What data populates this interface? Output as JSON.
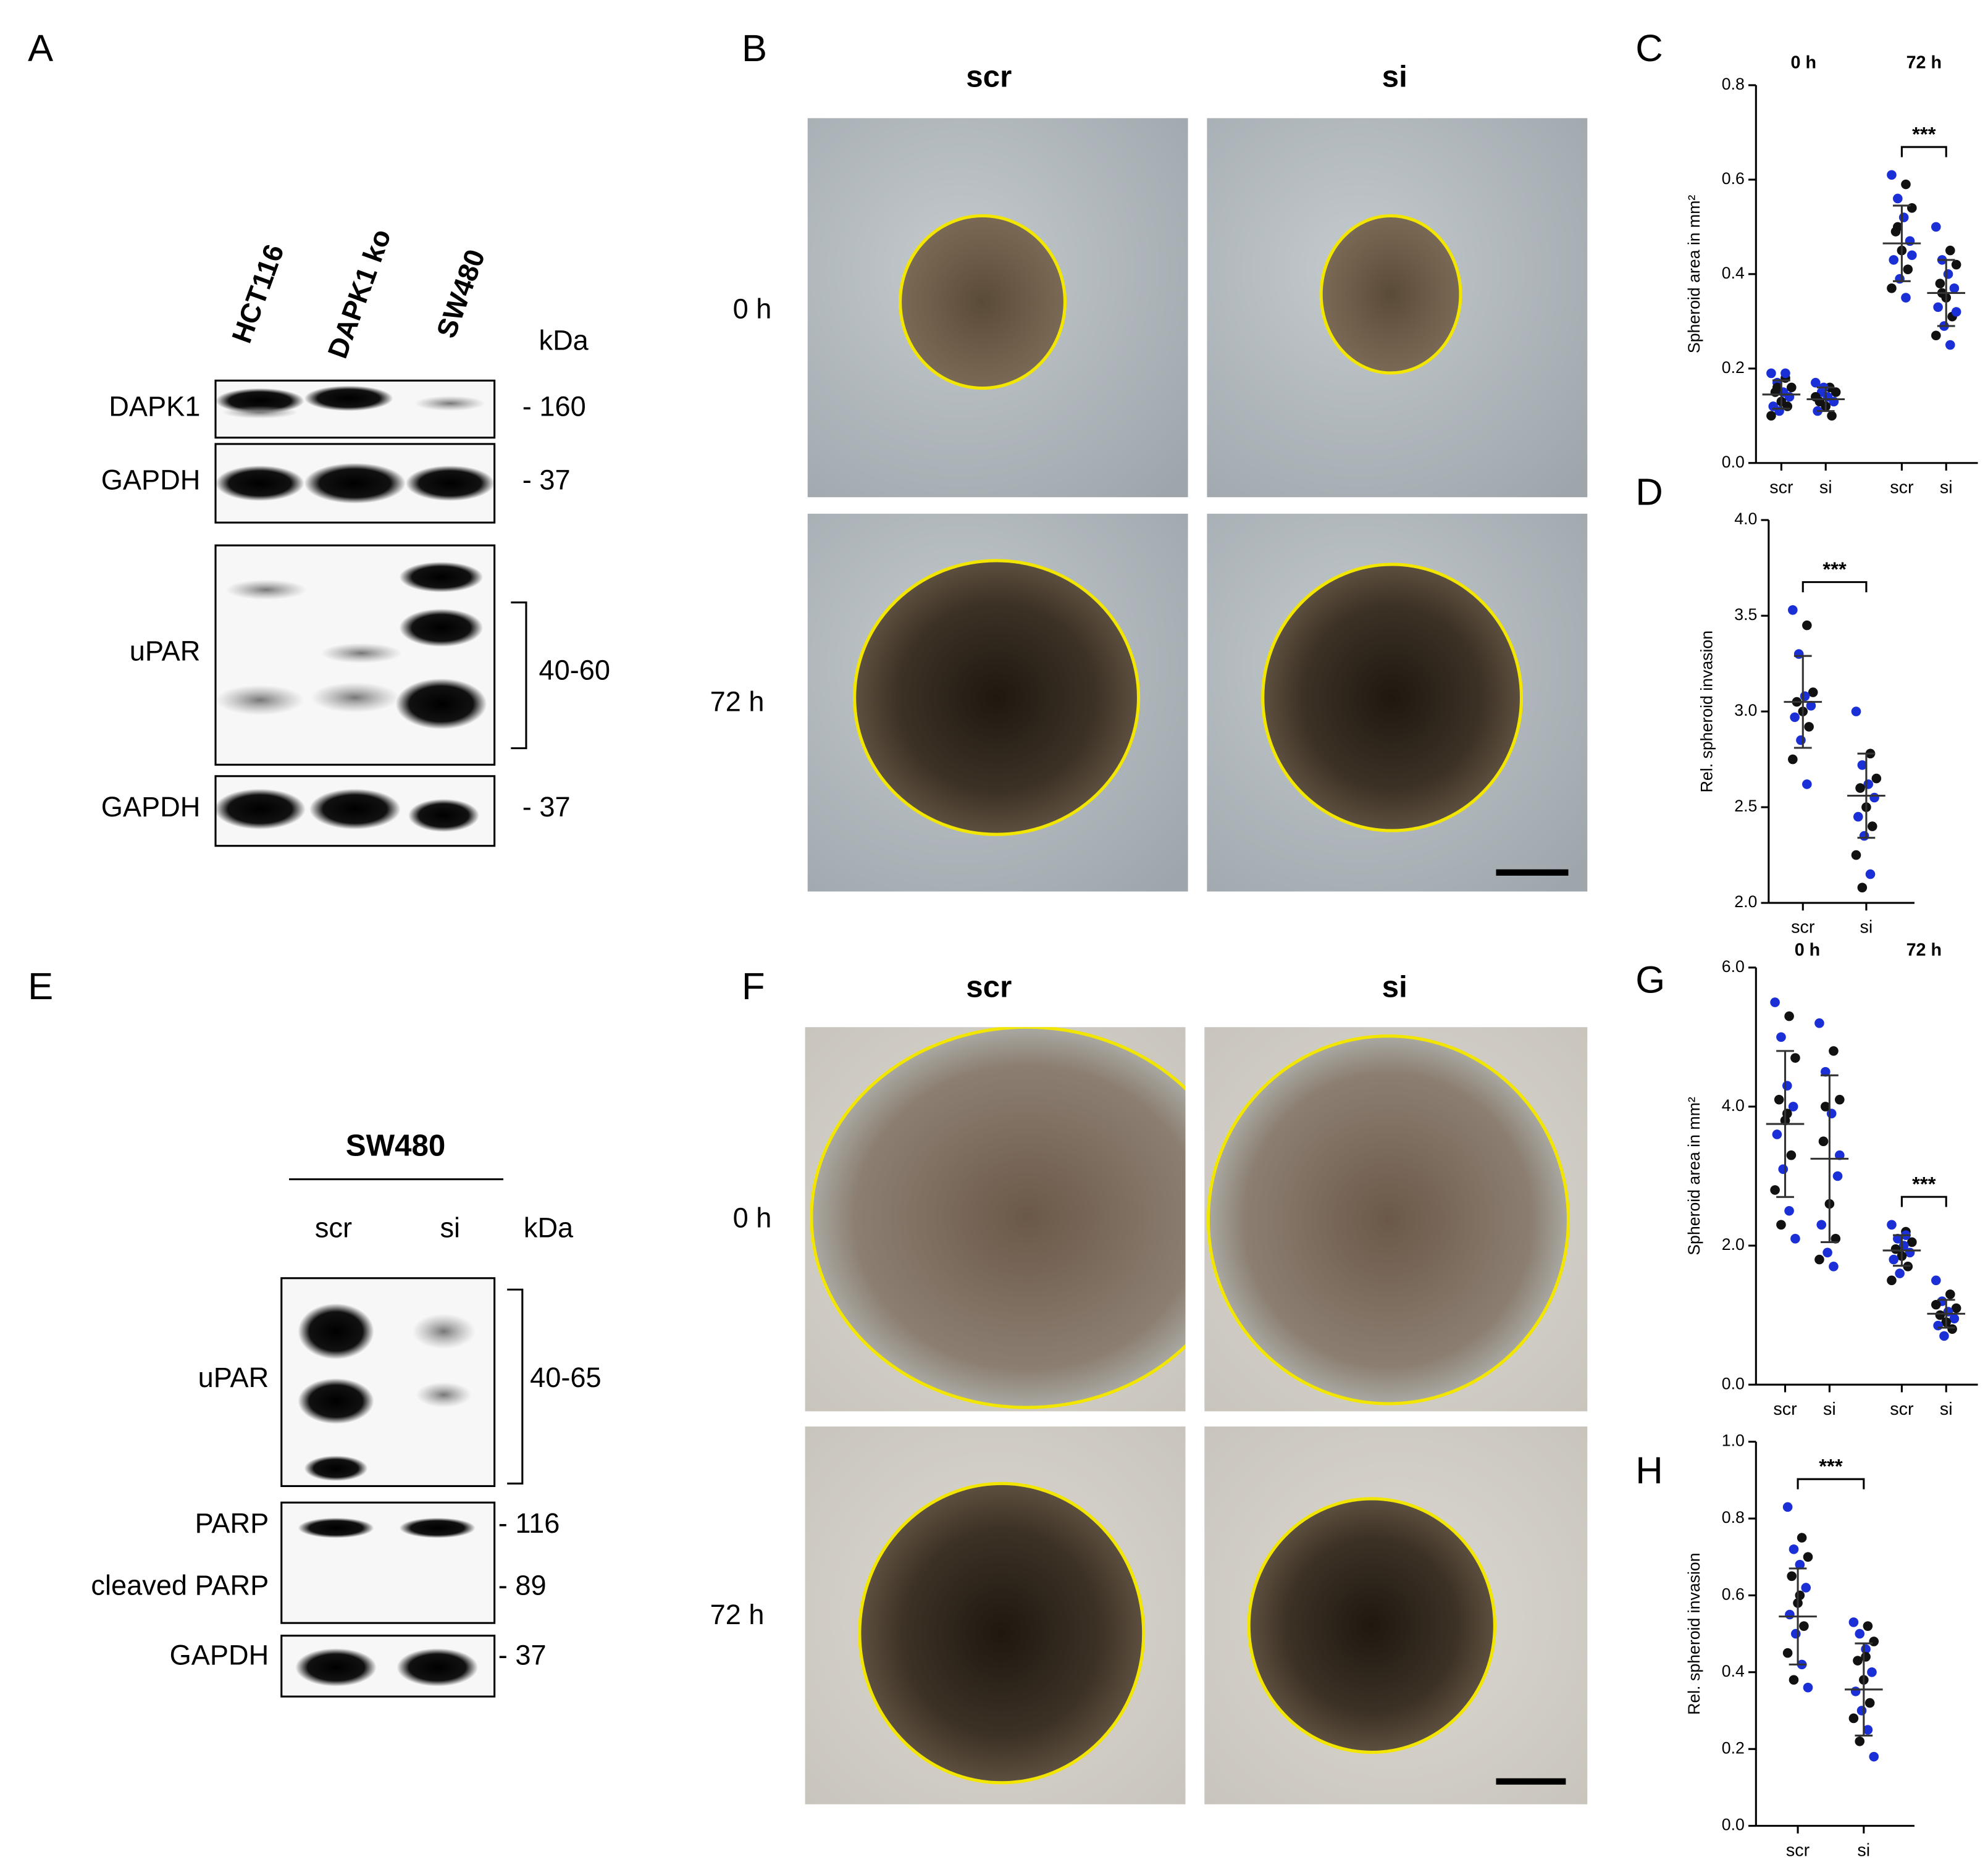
{
  "panel_labels": [
    "A",
    "B",
    "E",
    "F"
  ],
  "blot_a": {
    "lanes": [
      "HCT116",
      "DAPK1 ko",
      "SW480"
    ],
    "unit": "kDa",
    "rows": [
      {
        "label": "DAPK1",
        "marker": "- 160"
      },
      {
        "label": "GAPDH",
        "marker": "- 37"
      },
      {
        "label": "uPAR",
        "marker": "40-60"
      },
      {
        "label": "GAPDH",
        "marker": "- 37"
      }
    ]
  },
  "micro_b": {
    "columns": [
      "scr",
      "si"
    ],
    "rows": [
      "0 h",
      "72 h"
    ]
  },
  "blot_e": {
    "cell_line": "SW480",
    "lanes": [
      "scr",
      "si"
    ],
    "unit": "kDa",
    "rows": [
      {
        "label": "uPAR",
        "marker": "40-65"
      },
      {
        "label": "PARP",
        "marker": "- 116"
      },
      {
        "label": "cleaved  PARP",
        "marker": "- 89"
      },
      {
        "label": "GAPDH",
        "marker": "- 37"
      }
    ]
  },
  "micro_f": {
    "columns": [
      "scr",
      "si"
    ],
    "rows": [
      "0 h",
      "72 h"
    ]
  },
  "chart_data": [
    {
      "type": "dotplot",
      "panel": "C",
      "ylabel": "Spheroid area in mm²",
      "ylim": [
        0,
        0.8
      ],
      "yticks": [
        {
          "value": 0,
          "label": "0.0"
        },
        0.2,
        0.4,
        0.6,
        0.8
      ],
      "group_labels": [
        "0 h",
        "72 h"
      ],
      "categories": [
        "scr",
        "si",
        "scr",
        "si"
      ],
      "point_colors": [
        "#1a2fd6",
        "#111111"
      ],
      "annotation": "***",
      "groups": [
        {
          "values": [
            0.19,
            0.18,
            0.17,
            0.16,
            0.15,
            0.15,
            0.14,
            0.13,
            0.12,
            0.12,
            0.11,
            0.1,
            0.19,
            0.16
          ],
          "mean": 0.145,
          "sd": 0.03
        },
        {
          "values": [
            0.17,
            0.16,
            0.15,
            0.15,
            0.14,
            0.13,
            0.13,
            0.12,
            0.11,
            0.1,
            0.16,
            0.14
          ],
          "mean": 0.135,
          "sd": 0.025
        },
        {
          "values": [
            0.61,
            0.59,
            0.56,
            0.54,
            0.52,
            0.49,
            0.47,
            0.45,
            0.43,
            0.41,
            0.39,
            0.37,
            0.35,
            0.5,
            0.44
          ],
          "mean": 0.465,
          "sd": 0.08
        },
        {
          "values": [
            0.5,
            0.45,
            0.43,
            0.42,
            0.4,
            0.38,
            0.37,
            0.35,
            0.33,
            0.31,
            0.29,
            0.27,
            0.25,
            0.36,
            0.32
          ],
          "mean": 0.36,
          "sd": 0.07
        }
      ]
    },
    {
      "type": "dotplot",
      "panel": "D",
      "ylabel": "Rel. spheroid invasion",
      "ylim": [
        2,
        4
      ],
      "yticks": [
        {
          "value": 2,
          "label": "2.0"
        },
        2.5,
        {
          "value": 3,
          "label": "3.0"
        },
        3.5,
        {
          "value": 4,
          "label": "4.0"
        }
      ],
      "categories": [
        "scr",
        "si"
      ],
      "point_colors": [
        "#1a2fd6",
        "#111111"
      ],
      "annotation": "***",
      "groups": [
        {
          "values": [
            3.53,
            3.45,
            3.3,
            3.1,
            3.08,
            3.05,
            3.03,
            3.0,
            2.97,
            2.92,
            2.85,
            2.75,
            2.62
          ],
          "mean": 3.05,
          "sd": 0.24
        },
        {
          "values": [
            3.0,
            2.78,
            2.72,
            2.65,
            2.62,
            2.6,
            2.55,
            2.5,
            2.45,
            2.4,
            2.35,
            2.25,
            2.15,
            2.08
          ],
          "mean": 2.56,
          "sd": 0.22
        }
      ]
    },
    {
      "type": "dotplot",
      "panel": "G",
      "ylabel": "Spheroid area in mm²",
      "ylim": [
        0,
        6
      ],
      "yticks": [
        {
          "value": 0,
          "label": "0.0"
        },
        {
          "value": 2,
          "label": "2.0"
        },
        {
          "value": 4,
          "label": "4.0"
        },
        {
          "value": 6,
          "label": "6.0"
        }
      ],
      "group_labels": [
        "0 h",
        "72 h"
      ],
      "categories": [
        "scr",
        "si",
        "scr",
        "si"
      ],
      "point_colors": [
        "#1a2fd6",
        "#111111"
      ],
      "annotation": "***",
      "groups": [
        {
          "values": [
            5.5,
            5.3,
            5.0,
            4.7,
            4.3,
            4.1,
            4.0,
            3.8,
            3.6,
            3.3,
            3.1,
            2.8,
            2.5,
            2.3,
            2.1,
            3.9
          ],
          "mean": 3.75,
          "sd": 1.05
        },
        {
          "values": [
            5.2,
            4.8,
            4.5,
            4.1,
            3.9,
            3.5,
            3.0,
            2.6,
            2.3,
            2.1,
            1.9,
            1.8,
            1.7,
            4.0,
            3.3
          ],
          "mean": 3.25,
          "sd": 1.2
        },
        {
          "values": [
            2.3,
            2.2,
            2.1,
            2.05,
            2.0,
            1.95,
            1.9,
            1.85,
            1.8,
            1.7,
            1.6,
            1.5,
            2.15
          ],
          "mean": 1.93,
          "sd": 0.22
        },
        {
          "values": [
            1.5,
            1.3,
            1.2,
            1.1,
            1.05,
            1.0,
            0.95,
            0.9,
            0.85,
            0.8,
            0.7,
            1.15
          ],
          "mean": 1.02,
          "sd": 0.2
        }
      ]
    },
    {
      "type": "dotplot",
      "panel": "H",
      "ylabel": "Rel. spheroid invasion",
      "ylim": [
        0,
        1
      ],
      "yticks": [
        {
          "value": 0,
          "label": "0.0"
        },
        0.2,
        0.4,
        0.6,
        0.8,
        {
          "value": 1,
          "label": "1.0"
        }
      ],
      "categories": [
        "scr",
        "si"
      ],
      "point_colors": [
        "#1a2fd6",
        "#111111"
      ],
      "annotation": "***",
      "groups": [
        {
          "values": [
            0.83,
            0.75,
            0.72,
            0.7,
            0.68,
            0.65,
            0.62,
            0.58,
            0.55,
            0.52,
            0.5,
            0.45,
            0.42,
            0.38,
            0.36,
            0.6
          ],
          "mean": 0.545,
          "sd": 0.125
        },
        {
          "values": [
            0.53,
            0.52,
            0.5,
            0.48,
            0.46,
            0.43,
            0.4,
            0.38,
            0.35,
            0.32,
            0.3,
            0.28,
            0.25,
            0.22,
            0.18,
            0.44
          ],
          "mean": 0.355,
          "sd": 0.12
        }
      ]
    }
  ]
}
